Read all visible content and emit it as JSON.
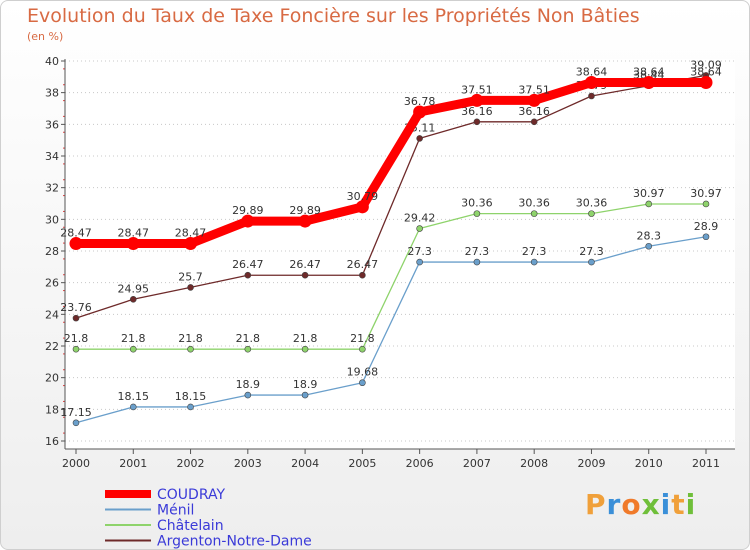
{
  "title": "Evolution du Taux de Taxe Foncière sur les Propriétés Non Bâties",
  "unit_label": "(en %)",
  "logo": {
    "text": "Proxiti"
  },
  "chart_data": {
    "type": "line",
    "title": "Evolution du Taux de Taxe Foncière sur les Propriétés Non Bâties",
    "ylabel": "(en %)",
    "x": [
      "2000",
      "2001",
      "2002",
      "2003",
      "2004",
      "2005",
      "2006",
      "2007",
      "2008",
      "2009",
      "2010",
      "2011"
    ],
    "ylim": [
      16,
      40
    ],
    "yticks": [
      "16",
      "18",
      "20",
      "22",
      "24",
      "26",
      "28",
      "30",
      "32",
      "34",
      "36",
      "38",
      "40"
    ],
    "grid": "horizontal-dotted",
    "legend_position": "bottom-left",
    "series": [
      {
        "name": "COUDRAY",
        "color": "#ff0000",
        "values": [
          28.47,
          28.47,
          28.47,
          29.89,
          29.89,
          30.79,
          36.78,
          37.51,
          37.51,
          38.64,
          38.64,
          38.64
        ],
        "labels": [
          "28.47",
          "28.47",
          "28.47",
          "29.89",
          "29.89",
          "30.79",
          "36.78",
          "37.51",
          "37.51",
          "38.64",
          "38.64",
          "38.64"
        ]
      },
      {
        "name": "Ménil",
        "color": "#6a9fcb",
        "values": [
          17.15,
          18.15,
          18.15,
          18.9,
          18.9,
          19.68,
          27.3,
          27.3,
          27.3,
          27.3,
          28.3,
          28.9
        ],
        "labels": [
          "17.15",
          "18.15",
          "18.15",
          "18.9",
          "18.9",
          "19.68",
          "27.3",
          "27.3",
          "27.3",
          "27.3",
          "28.3",
          "28.9"
        ]
      },
      {
        "name": "Châtelain",
        "color": "#8ed36b",
        "values": [
          21.8,
          21.8,
          21.8,
          21.8,
          21.8,
          21.8,
          29.42,
          30.36,
          30.36,
          30.36,
          30.97,
          30.97
        ],
        "labels": [
          "21.8",
          "21.8",
          "21.8",
          "21.8",
          "21.8",
          "21.8",
          "29.42",
          "30.36",
          "30.36",
          "30.36",
          "30.97",
          "30.97"
        ]
      },
      {
        "name": "Argenton-Notre-Dame",
        "color": "#6e2a2a",
        "values": [
          23.76,
          24.95,
          25.7,
          26.47,
          26.47,
          26.47,
          35.11,
          36.16,
          36.16,
          37.79,
          38.44,
          39.09
        ],
        "labels": [
          "23.76",
          "24.95",
          "25.7",
          "26.47",
          "26.47",
          "26.47",
          "35.11",
          "36.16",
          "36.16",
          "37.79",
          "38.44",
          "39.09"
        ]
      }
    ]
  }
}
